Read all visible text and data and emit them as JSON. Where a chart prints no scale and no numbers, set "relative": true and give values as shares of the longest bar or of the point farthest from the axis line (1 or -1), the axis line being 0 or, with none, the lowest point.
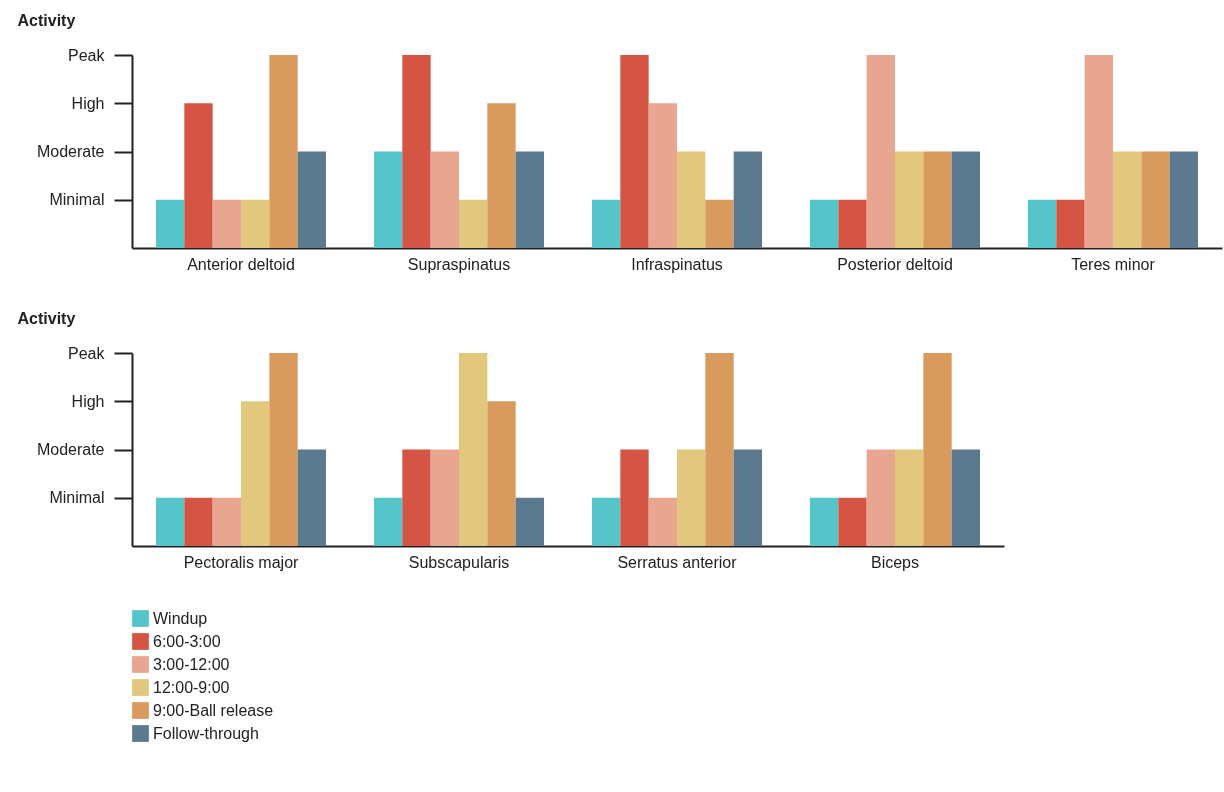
{
  "chart_data": [
    {
      "type": "bar",
      "ylabel": "Activity",
      "relative": true,
      "categories": [
        "Anterior deltoid",
        "Supraspinatus",
        "Infraspinatus",
        "Posterior deltoid",
        "Teres minor"
      ],
      "series": [
        {
          "name": "Windup",
          "color": "#56c5c9",
          "values": [
            0.25,
            0.5,
            0.25,
            0.25,
            0.25
          ]
        },
        {
          "name": "6:00-3:00",
          "color": "#d45543",
          "values": [
            0.75,
            1,
            1,
            0.25,
            0.25
          ]
        },
        {
          "name": "3:00-12:00",
          "color": "#e8a590",
          "values": [
            0.25,
            0.5,
            0.75,
            1,
            1
          ]
        },
        {
          "name": "12:00-9:00",
          "color": "#e2c87c",
          "values": [
            0.25,
            0.25,
            0.5,
            0.5,
            0.5
          ]
        },
        {
          "name": "9:00-Ball release",
          "color": "#d99a5e",
          "values": [
            1,
            0.75,
            0.25,
            0.5,
            0.5
          ]
        },
        {
          "name": "Follow-through",
          "color": "#5c7a8f",
          "values": [
            0.5,
            0.5,
            0.5,
            0.5,
            0.5
          ]
        }
      ],
      "annotations": [
        "Minimal",
        "Moderate",
        "High",
        "Peak"
      ],
      "legend": "bottom"
    },
    {
      "type": "bar",
      "ylabel": "Activity",
      "relative": true,
      "categories": [
        "Pectoralis major",
        "Subscapularis",
        "Serratus anterior",
        "Biceps"
      ],
      "series": [
        {
          "name": "Windup",
          "color": "#56c5c9",
          "values": [
            0.25,
            0.25,
            0.25,
            0.25
          ]
        },
        {
          "name": "6:00-3:00",
          "color": "#d45543",
          "values": [
            0.25,
            0.5,
            0.5,
            0.25
          ]
        },
        {
          "name": "3:00-12:00",
          "color": "#e8a590",
          "values": [
            0.25,
            0.5,
            0.25,
            0.5
          ]
        },
        {
          "name": "12:00-9:00",
          "color": "#e2c87c",
          "values": [
            0.75,
            1,
            0.5,
            0.5
          ]
        },
        {
          "name": "9:00-Ball release",
          "color": "#d99a5e",
          "values": [
            1,
            0.75,
            1,
            1
          ]
        },
        {
          "name": "Follow-through",
          "color": "#5c7a8f",
          "values": [
            0.5,
            0.25,
            0.5,
            0.5
          ]
        }
      ],
      "annotations": [
        "Minimal",
        "Moderate",
        "High",
        "Peak"
      ],
      "legend": "bottom"
    }
  ]
}
